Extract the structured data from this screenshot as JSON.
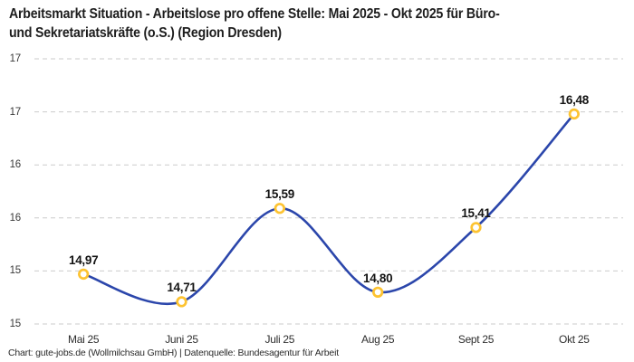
{
  "title": {
    "line1": "Arbeitsmarkt Situation - Arbeitslose pro offene Stelle: Mai 2025 - Okt 2025 für Büro-",
    "line2": "und Sekretariatskräfte (o.S.) (Region Dresden)"
  },
  "footer": "Chart: gute-jobs.de (Wollmilchsau GmbH) | Datenquelle: Bundesagentur für Arbeit",
  "chart_data": {
    "type": "line",
    "title": "Arbeitsmarkt Situation - Arbeitslose pro offene Stelle: Mai 2025 - Okt 2025 für Büro- und Sekretariatskräfte (o.S.) (Region Dresden)",
    "categories": [
      "Mai 25",
      "Juni 25",
      "Juli 25",
      "Aug 25",
      "Sept 25",
      "Okt 25"
    ],
    "values": [
      14.97,
      14.71,
      15.59,
      14.8,
      15.41,
      16.48
    ],
    "value_labels": [
      "14,97",
      "14,71",
      "15,59",
      "14,80",
      "15,41",
      "16,48"
    ],
    "xlabel": "",
    "ylabel": "",
    "ylim": [
      14.5,
      17.0
    ],
    "yticks": [
      {
        "value": 17.0,
        "label": "17"
      },
      {
        "value": 16.5,
        "label": "17"
      },
      {
        "value": 16.0,
        "label": "16"
      },
      {
        "value": 15.5,
        "label": "16"
      },
      {
        "value": 15.0,
        "label": "15"
      },
      {
        "value": 14.5,
        "label": "15"
      }
    ],
    "grid": "horizontal-dashed",
    "legend": "none",
    "line_style": "smooth-spline",
    "colors": {
      "line": "#2b46ab",
      "marker_ring": "#fdc331",
      "marker_fill": "#ffffff",
      "gridline": "#cbcbcb",
      "title_text": "#1d1d1d",
      "tick_text": "#3a3a3a",
      "value_label_text": "#141414"
    }
  }
}
